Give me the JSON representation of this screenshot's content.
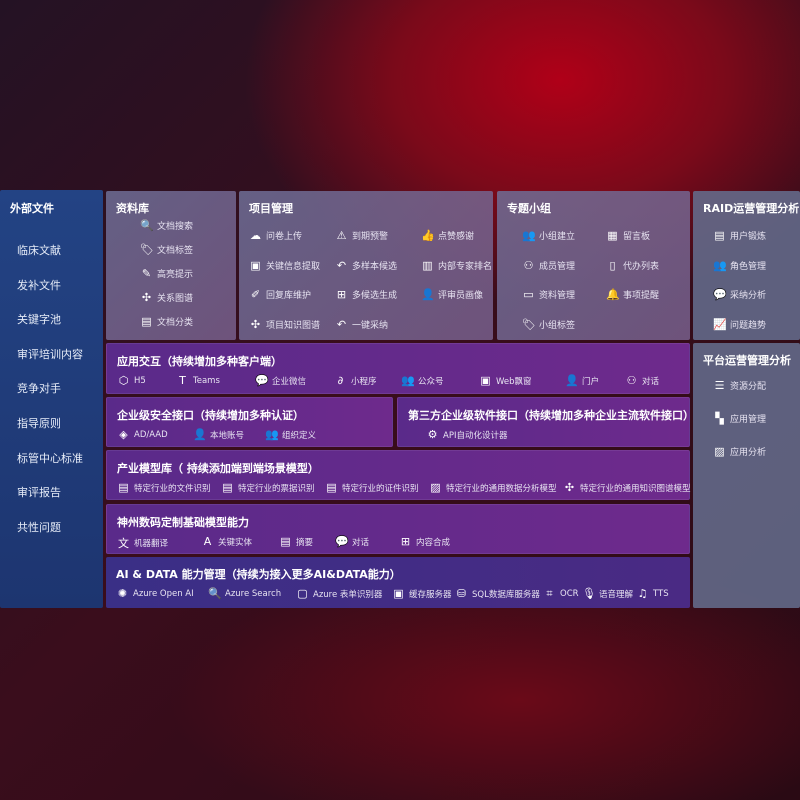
{
  "sidebar": {
    "title": "外部文件",
    "items": [
      "临床文献",
      "发补文件",
      "关键字池",
      "审评培训内容",
      "竞争对手",
      "指导原则",
      "标管中心标准",
      "审评报告",
      "共性问题"
    ]
  },
  "library": {
    "title": "资料库",
    "items": [
      {
        "icon": "doc-search-icon",
        "label": "文档搜索"
      },
      {
        "icon": "tag-icon",
        "label": "文档标签"
      },
      {
        "icon": "pen-icon",
        "label": "高亮提示"
      },
      {
        "icon": "graph-icon",
        "label": "关系图谱"
      },
      {
        "icon": "doc-icon",
        "label": "文档分类"
      }
    ]
  },
  "project": {
    "title": "项目管理",
    "items": [
      {
        "icon": "upload-cloud-icon",
        "label": "问卷上传"
      },
      {
        "icon": "alarm-icon",
        "label": "到期预警"
      },
      {
        "icon": "thumbs-up-icon",
        "label": "点赞感谢"
      },
      {
        "icon": "window-icon",
        "label": "关键信息提取"
      },
      {
        "icon": "reply-icon",
        "label": "多样本候选"
      },
      {
        "icon": "ranking-icon",
        "label": "内部专家排名"
      },
      {
        "icon": "edit-icon",
        "label": "回复库维护"
      },
      {
        "icon": "puzzle-icon",
        "label": "多候选生成"
      },
      {
        "icon": "user-icon",
        "label": "评审员画像"
      },
      {
        "icon": "graph-icon",
        "label": "项目知识图谱"
      },
      {
        "icon": "reply-icon",
        "label": "一键采纳"
      }
    ]
  },
  "group": {
    "title": "专题小组",
    "items": [
      {
        "icon": "users-icon",
        "label": "小组建立"
      },
      {
        "icon": "bbs-icon",
        "label": "留言板"
      },
      {
        "icon": "user-add-icon",
        "label": "成员管理"
      },
      {
        "icon": "clipboard-icon",
        "label": "代办列表"
      },
      {
        "icon": "folder-icon",
        "label": "资料管理"
      },
      {
        "icon": "bell-icon",
        "label": "事项提醒"
      },
      {
        "icon": "tag-icon",
        "label": "小组标签"
      }
    ]
  },
  "raid": {
    "title": "RAID运营管理分析",
    "items": [
      {
        "icon": "id-card-icon",
        "label": "用户锻炼"
      },
      {
        "icon": "users-icon",
        "label": "角色管理"
      },
      {
        "icon": "qa-icon",
        "label": "采纳分析"
      },
      {
        "icon": "trend-icon",
        "label": "问题趋势"
      }
    ]
  },
  "platform": {
    "title": "平台运营管理分析",
    "items": [
      {
        "icon": "list-icon",
        "label": "资源分配"
      },
      {
        "icon": "apps-icon",
        "label": "应用管理"
      },
      {
        "icon": "chart-icon",
        "label": "应用分析"
      }
    ]
  },
  "interaction": {
    "title": "应用交互（持续增加多种客户端）",
    "items": [
      {
        "icon": "html5-icon",
        "label": "H5"
      },
      {
        "icon": "teams-icon",
        "label": "Teams"
      },
      {
        "icon": "wechat-icon",
        "label": "企业微信"
      },
      {
        "icon": "miniprogram-icon",
        "label": "小程序"
      },
      {
        "icon": "users-icon",
        "label": "公众号"
      },
      {
        "icon": "window-icon",
        "label": "Web飘窗"
      },
      {
        "icon": "portal-icon",
        "label": "门户"
      },
      {
        "icon": "chat-users-icon",
        "label": "对话"
      }
    ]
  },
  "security": {
    "title": "企业级安全接口（持续增加多种认证）",
    "items": [
      {
        "icon": "diamond-icon",
        "label": "AD/AAD"
      },
      {
        "icon": "user-lock-icon",
        "label": "本地账号"
      },
      {
        "icon": "org-icon",
        "label": "组织定义"
      }
    ]
  },
  "third": {
    "title": "第三方企业级软件接口（持续增加多种企业主流软件接口）",
    "items": [
      {
        "icon": "gear-icon",
        "label": "API自动化设计器"
      }
    ]
  },
  "industry": {
    "title": "产业模型库（ 持续添加端到端场景模型）",
    "items": [
      {
        "icon": "doc-icon",
        "label": "特定行业的文件识别"
      },
      {
        "icon": "receipt-icon",
        "label": "特定行业的票据识别"
      },
      {
        "icon": "id-card-icon",
        "label": "特定行业的证件识别"
      },
      {
        "icon": "image-icon",
        "label": "特定行业的通用数据分析模型"
      },
      {
        "icon": "graph-icon",
        "label": "特定行业的通用知识图谱模型"
      }
    ]
  },
  "base": {
    "title": "神州数码定制基础模型能力",
    "items": [
      {
        "icon": "translate-icon",
        "label": "机器翻译"
      },
      {
        "icon": "entity-icon",
        "label": "关键实体"
      },
      {
        "icon": "doc-icon",
        "label": "摘要"
      },
      {
        "icon": "chat-icon",
        "label": "对话"
      },
      {
        "icon": "puzzle-icon",
        "label": "内容合成"
      }
    ]
  },
  "aidata": {
    "title": "AI & DATA 能力管理（持续为接入更多AI&DATA能力）",
    "items": [
      {
        "icon": "openai-icon",
        "label": "Azure Open AI"
      },
      {
        "icon": "search-icon",
        "label": "Azure Search"
      },
      {
        "icon": "form-icon",
        "label": "Azure 表单识别器"
      },
      {
        "icon": "cache-icon",
        "label": "缓存服务器"
      },
      {
        "icon": "database-icon",
        "label": "SQL数据库服务器"
      },
      {
        "icon": "ocr-icon",
        "label": "OCR"
      },
      {
        "icon": "voice-icon",
        "label": "语音理解"
      },
      {
        "icon": "tts-icon",
        "label": "TTS"
      }
    ]
  }
}
